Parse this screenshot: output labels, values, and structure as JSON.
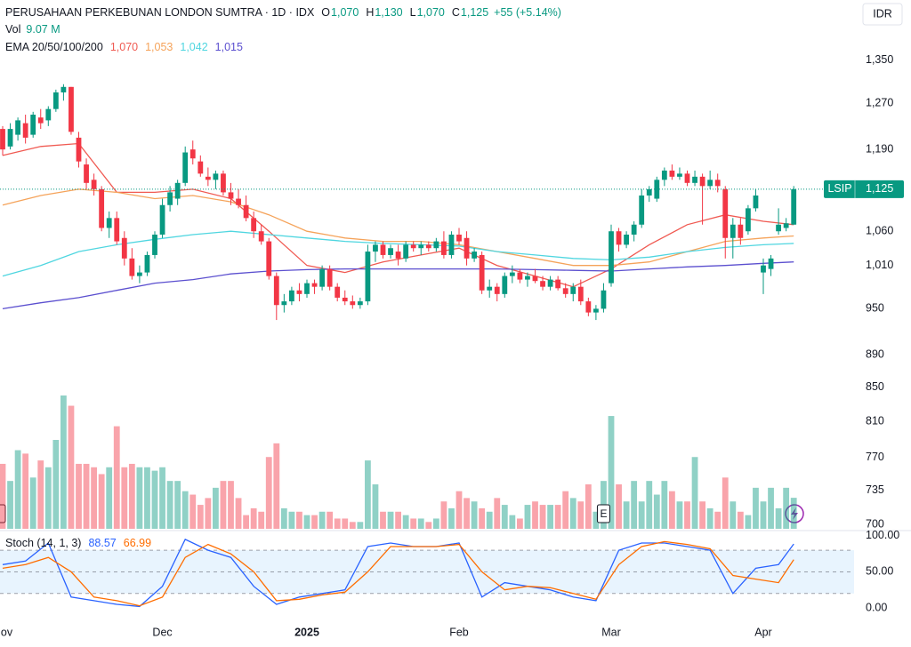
{
  "chart_data": [
    {
      "type": "candlestick",
      "title": "PERUSAHAAN PERKEBUNAN LONDON SUMTRA · 1D · IDX",
      "header": [
        "O",
        "1,070",
        "H",
        "1,130",
        "L",
        "1,070",
        "C",
        "1,125",
        "+55 (+5.14%)"
      ],
      "currency": "IDR",
      "symbol": "LSIP",
      "last_price": {
        "value": 1125,
        "label": "1,125"
      },
      "up_color": "#089981",
      "down_color": "#f23645",
      "yscale": "log",
      "ylim": [
        696,
        1470
      ],
      "yticks": [
        {
          "value": 1350,
          "label": "1,350"
        },
        {
          "value": 1270,
          "label": "1,270"
        },
        {
          "value": 1190,
          "label": "1,190"
        },
        {
          "value": 1060,
          "label": "1,060"
        },
        {
          "value": 1010,
          "label": "1,010"
        },
        950,
        890,
        850,
        810,
        770,
        735,
        700
      ],
      "xticks": [
        {
          "value": 0,
          "label": "Nov"
        },
        {
          "value": 21,
          "label": "Dec"
        },
        {
          "value": 40,
          "label": "2025"
        },
        {
          "value": 60,
          "label": "Feb"
        },
        {
          "value": 80,
          "label": "Mar"
        },
        {
          "value": 100,
          "label": "Apr"
        }
      ],
      "events": [
        {
          "index": 79,
          "label": "E"
        }
      ],
      "candles": [
        [
          1225,
          1230,
          1180,
          1190
        ],
        [
          1195,
          1235,
          1190,
          1225
        ],
        [
          1215,
          1245,
          1205,
          1240
        ],
        [
          1235,
          1250,
          1200,
          1210
        ],
        [
          1215,
          1255,
          1210,
          1250
        ],
        [
          1245,
          1260,
          1225,
          1235
        ],
        [
          1240,
          1265,
          1230,
          1260
        ],
        [
          1260,
          1295,
          1255,
          1290
        ],
        [
          1290,
          1305,
          1275,
          1300
        ],
        [
          1300,
          1300,
          1215,
          1220
        ],
        [
          1210,
          1220,
          1160,
          1170
        ],
        [
          1165,
          1175,
          1125,
          1135
        ],
        [
          1140,
          1150,
          1115,
          1125
        ],
        [
          1125,
          1130,
          1060,
          1065
        ],
        [
          1065,
          1090,
          1050,
          1080
        ],
        [
          1080,
          1090,
          1040,
          1045
        ],
        [
          1050,
          1060,
          1010,
          1020
        ],
        [
          1020,
          1035,
          990,
          995
        ],
        [
          995,
          1010,
          985,
          1000
        ],
        [
          1000,
          1030,
          995,
          1025
        ],
        [
          1025,
          1060,
          1020,
          1055
        ],
        [
          1055,
          1110,
          1050,
          1100
        ],
        [
          1100,
          1130,
          1090,
          1120
        ],
        [
          1110,
          1140,
          1100,
          1135
        ],
        [
          1135,
          1195,
          1130,
          1185
        ],
        [
          1190,
          1205,
          1165,
          1175
        ],
        [
          1170,
          1180,
          1145,
          1150
        ],
        [
          1145,
          1160,
          1130,
          1140
        ],
        [
          1140,
          1155,
          1125,
          1150
        ],
        [
          1150,
          1155,
          1115,
          1120
        ],
        [
          1120,
          1135,
          1100,
          1110
        ],
        [
          1110,
          1125,
          1095,
          1100
        ],
        [
          1100,
          1115,
          1075,
          1080
        ],
        [
          1080,
          1090,
          1050,
          1060
        ],
        [
          1060,
          1070,
          1040,
          1045
        ],
        [
          1045,
          1050,
          990,
          995
        ],
        [
          995,
          1000,
          935,
          955
        ],
        [
          955,
          970,
          945,
          960
        ],
        [
          960,
          980,
          955,
          975
        ],
        [
          975,
          985,
          960,
          970
        ],
        [
          970,
          990,
          965,
          985
        ],
        [
          985,
          990,
          970,
          980
        ],
        [
          980,
          1010,
          975,
          1005
        ],
        [
          1005,
          1010,
          975,
          980
        ],
        [
          980,
          985,
          960,
          965
        ],
        [
          965,
          975,
          955,
          960
        ],
        [
          960,
          968,
          950,
          955
        ],
        [
          955,
          965,
          950,
          960
        ],
        [
          960,
          1040,
          955,
          1030
        ],
        [
          1030,
          1045,
          1015,
          1040
        ],
        [
          1040,
          1045,
          1020,
          1025
        ],
        [
          1025,
          1040,
          1020,
          1035
        ],
        [
          1030,
          1040,
          1010,
          1020
        ],
        [
          1020,
          1045,
          1015,
          1040
        ],
        [
          1040,
          1045,
          1030,
          1035
        ],
        [
          1035,
          1045,
          1025,
          1040
        ],
        [
          1040,
          1045,
          1030,
          1035
        ],
        [
          1035,
          1050,
          1030,
          1045
        ],
        [
          1045,
          1060,
          1020,
          1025
        ],
        [
          1025,
          1060,
          1020,
          1055
        ],
        [
          1055,
          1065,
          1040,
          1045
        ],
        [
          1050,
          1060,
          1010,
          1020
        ],
        [
          1020,
          1035,
          1015,
          1030
        ],
        [
          1025,
          1030,
          970,
          975
        ],
        [
          975,
          990,
          965,
          980
        ],
        [
          980,
          985,
          960,
          970
        ],
        [
          970,
          1000,
          965,
          995
        ],
        [
          995,
          1010,
          985,
          1000
        ],
        [
          1000,
          1005,
          985,
          990
        ],
        [
          990,
          1000,
          980,
          995
        ],
        [
          995,
          1005,
          985,
          988
        ],
        [
          988,
          995,
          975,
          980
        ],
        [
          980,
          995,
          975,
          990
        ],
        [
          990,
          995,
          975,
          978
        ],
        [
          978,
          985,
          965,
          970
        ],
        [
          970,
          985,
          960,
          980
        ],
        [
          980,
          990,
          955,
          960
        ],
        [
          960,
          965,
          940,
          945
        ],
        [
          945,
          955,
          935,
          950
        ],
        [
          950,
          985,
          945,
          975
        ],
        [
          985,
          1070,
          980,
          1060
        ],
        [
          1060,
          1065,
          1030,
          1040
        ],
        [
          1040,
          1060,
          1035,
          1055
        ],
        [
          1055,
          1075,
          1045,
          1070
        ],
        [
          1070,
          1125,
          1065,
          1115
        ],
        [
          1115,
          1130,
          1105,
          1125
        ],
        [
          1110,
          1145,
          1105,
          1140
        ],
        [
          1140,
          1160,
          1130,
          1155
        ],
        [
          1155,
          1165,
          1140,
          1145
        ],
        [
          1145,
          1160,
          1140,
          1150
        ],
        [
          1150,
          1155,
          1130,
          1135
        ],
        [
          1135,
          1155,
          1130,
          1145
        ],
        [
          1145,
          1150,
          1070,
          1130
        ],
        [
          1130,
          1155,
          1125,
          1140
        ],
        [
          1140,
          1150,
          1120,
          1130
        ],
        [
          1125,
          1130,
          1020,
          1050
        ],
        [
          1050,
          1080,
          1020,
          1070
        ],
        [
          1070,
          1080,
          1040,
          1050
        ],
        [
          1060,
          1100,
          1055,
          1095
        ],
        [
          1095,
          1125,
          1090,
          1115
        ],
        [
          1000,
          1020,
          970,
          1010
        ],
        [
          1005,
          1025,
          995,
          1020
        ],
        [
          1060,
          1095,
          1055,
          1070
        ],
        [
          1065,
          1080,
          1060,
          1072
        ],
        [
          1070,
          1130,
          1070,
          1125
        ]
      ],
      "volume": {
        "name": "Vol",
        "label": "9.07 M",
        "values": [
          19,
          14,
          23,
          22,
          15,
          20,
          18,
          26,
          39,
          36,
          19,
          19,
          18,
          16,
          18,
          30,
          18,
          19,
          18,
          18,
          17,
          18,
          14,
          14,
          11,
          10,
          7,
          9,
          12,
          14,
          14,
          9,
          4,
          6,
          5,
          21,
          25,
          6,
          5,
          5,
          4,
          4,
          5,
          5,
          3,
          3,
          2,
          2,
          20,
          13,
          5,
          5,
          5,
          4,
          3,
          3,
          2,
          3,
          8,
          6,
          11,
          9,
          8,
          6,
          5,
          9,
          7,
          4,
          3,
          7,
          8,
          7,
          7,
          7,
          11,
          9,
          8,
          13,
          5,
          14,
          33,
          13,
          8,
          14,
          8,
          14,
          10,
          14,
          11,
          8,
          8,
          21,
          8,
          6,
          5,
          15,
          8,
          5,
          4,
          12,
          8,
          12,
          6,
          12,
          9.07
        ]
      },
      "ema": {
        "name": "EMA 20/50/100/200",
        "x": [
          0,
          5,
          10,
          15,
          20,
          25,
          30,
          35,
          40,
          45,
          50,
          55,
          60,
          65,
          70,
          75,
          80,
          85,
          90,
          95,
          100,
          104
        ],
        "series": [
          {
            "label": "1,070",
            "color": "#f05a52",
            "values": [
              1180,
              1195,
              1200,
              1120,
              1120,
              1125,
              1110,
              1060,
              1010,
              1000,
              1015,
              1025,
              1035,
              1010,
              995,
              980,
              1005,
              1040,
              1070,
              1085,
              1075,
              1070
            ]
          },
          {
            "label": "1,053",
            "color": "#f5a35a",
            "values": [
              1100,
              1115,
              1125,
              1120,
              1110,
              1115,
              1105,
              1085,
              1060,
              1050,
              1045,
              1045,
              1040,
              1030,
              1020,
              1010,
              1010,
              1015,
              1030,
              1045,
              1050,
              1053
            ]
          },
          {
            "label": "1,042",
            "color": "#4fd6e0",
            "values": [
              995,
              1010,
              1030,
              1040,
              1048,
              1055,
              1060,
              1055,
              1050,
              1045,
              1042,
              1040,
              1038,
              1030,
              1025,
              1020,
              1018,
              1022,
              1030,
              1036,
              1040,
              1042
            ]
          },
          {
            "label": "1,015",
            "color": "#5b4fcf",
            "values": [
              950,
              958,
              965,
              975,
              985,
              990,
              998,
              1002,
              1004,
              1005,
              1005,
              1005,
              1005,
              1005,
              1004,
              1003,
              1002,
              1005,
              1008,
              1010,
              1013,
              1015
            ]
          }
        ]
      }
    },
    {
      "type": "line",
      "title": "Stoch (14, 1, 3)",
      "ylim": [
        -16,
        106
      ],
      "yticks": [
        {
          "value": 100,
          "label": "100.00"
        },
        {
          "value": 50,
          "label": "50.00"
        },
        {
          "value": 0,
          "label": "0.00"
        }
      ],
      "levels": [
        20,
        50,
        80
      ],
      "x": [
        0,
        3,
        6,
        9,
        12,
        15,
        18,
        21,
        24,
        27,
        30,
        33,
        36,
        39,
        42,
        45,
        48,
        51,
        54,
        57,
        60,
        63,
        66,
        69,
        72,
        75,
        78,
        81,
        84,
        87,
        90,
        93,
        96,
        99,
        102,
        104
      ],
      "series": [
        {
          "color": "#2962ff",
          "values": [
            60,
            65,
            90,
            15,
            10,
            5,
            2,
            30,
            95,
            80,
            70,
            30,
            5,
            15,
            20,
            25,
            85,
            90,
            85,
            85,
            90,
            15,
            35,
            30,
            25,
            15,
            10,
            80,
            90,
            90,
            85,
            80,
            20,
            55,
            60,
            88.57
          ]
        },
        {
          "color": "#ff6d00",
          "values": [
            55,
            60,
            70,
            50,
            15,
            10,
            3,
            15,
            70,
            88,
            75,
            50,
            10,
            12,
            18,
            22,
            50,
            85,
            85,
            85,
            88,
            50,
            25,
            30,
            28,
            20,
            12,
            60,
            85,
            92,
            88,
            82,
            45,
            40,
            35,
            66.99
          ]
        }
      ]
    }
  ]
}
